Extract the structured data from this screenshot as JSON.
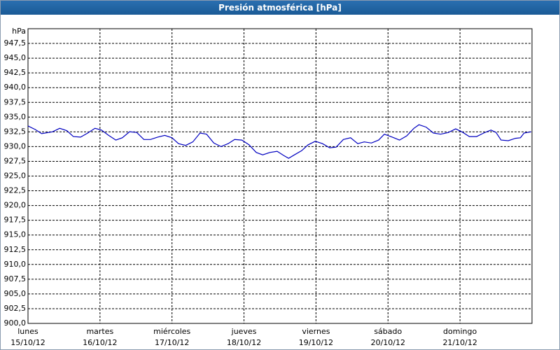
{
  "chart_data": {
    "type": "line",
    "title": "Presión atmosférica [hPa]",
    "y_label": "hPa",
    "xlim": [
      0,
      7
    ],
    "ylim": [
      900,
      950
    ],
    "xticks": [
      {
        "value": 0,
        "label": "lunes",
        "date": "15/10/12"
      },
      {
        "value": 1,
        "label": "martes",
        "date": "16/10/12"
      },
      {
        "value": 2,
        "label": "miércoles",
        "date": "17/10/12"
      },
      {
        "value": 3,
        "label": "jueves",
        "date": "18/10/12"
      },
      {
        "value": 4,
        "label": "viernes",
        "date": "19/10/12"
      },
      {
        "value": 5,
        "label": "sábado",
        "date": "20/10/12"
      },
      {
        "value": 6,
        "label": "domingo",
        "date": "21/10/12"
      }
    ],
    "yticks": [
      {
        "value": 900,
        "label": "900,0"
      },
      {
        "value": 902.5,
        "label": "902,5"
      },
      {
        "value": 905,
        "label": "905,0"
      },
      {
        "value": 907.5,
        "label": "907,5"
      },
      {
        "value": 910,
        "label": "910,0"
      },
      {
        "value": 912.5,
        "label": "912,5"
      },
      {
        "value": 915,
        "label": "915,0"
      },
      {
        "value": 917.5,
        "label": "917,5"
      },
      {
        "value": 920,
        "label": "920,0"
      },
      {
        "value": 922.5,
        "label": "922,5"
      },
      {
        "value": 925,
        "label": "925,0"
      },
      {
        "value": 927.5,
        "label": "927,5"
      },
      {
        "value": 930,
        "label": "930,0"
      },
      {
        "value": 932.5,
        "label": "932,5"
      },
      {
        "value": 935,
        "label": "935,0"
      },
      {
        "value": 937.5,
        "label": "937,5"
      },
      {
        "value": 940,
        "label": "940,0"
      },
      {
        "value": 942.5,
        "label": "942,5"
      },
      {
        "value": 945,
        "label": "945,0"
      },
      {
        "value": 947.5,
        "label": "947,5"
      }
    ],
    "grid": true,
    "series": [
      {
        "color": "#0000c0",
        "x": [
          0,
          0.1,
          0.19,
          0.34,
          0.44,
          0.54,
          0.63,
          0.73,
          0.83,
          0.93,
          1.02,
          1.12,
          1.22,
          1.31,
          1.41,
          1.51,
          1.61,
          1.7,
          1.8,
          1.9,
          2.0,
          2.09,
          2.19,
          2.29,
          2.39,
          2.48,
          2.58,
          2.68,
          2.78,
          2.87,
          2.97,
          3.07,
          3.17,
          3.26,
          3.36,
          3.46,
          3.55,
          3.62,
          3.7,
          3.8,
          3.89,
          3.99,
          4.09,
          4.19,
          4.28,
          4.38,
          4.48,
          4.58,
          4.67,
          4.77,
          4.87,
          4.95,
          5.06,
          5.16,
          5.26,
          5.36,
          5.43,
          5.53,
          5.63,
          5.73,
          5.84,
          5.94,
          6.04,
          6.13,
          6.23,
          6.33,
          6.43,
          6.5,
          6.57,
          6.67,
          6.77,
          6.84,
          6.89,
          6.99
        ],
        "values": [
          933.5,
          932.9,
          932.2,
          932.5,
          933.1,
          932.7,
          931.7,
          931.6,
          932.3,
          933.1,
          932.8,
          931.9,
          931.1,
          931.5,
          932.5,
          932.4,
          931.2,
          931.2,
          931.6,
          931.9,
          931.5,
          930.5,
          930.2,
          930.8,
          932.3,
          932.1,
          930.6,
          930.0,
          930.5,
          931.2,
          931.1,
          930.3,
          929.0,
          928.6,
          929.0,
          929.2,
          928.5,
          928.0,
          928.6,
          929.3,
          930.3,
          930.9,
          930.5,
          929.8,
          929.9,
          931.2,
          931.5,
          930.5,
          930.8,
          930.6,
          931.1,
          932.1,
          931.6,
          931.1,
          931.8,
          933.1,
          933.7,
          933.3,
          932.3,
          932.1,
          932.4,
          933.0,
          932.4,
          931.7,
          931.7,
          932.3,
          932.8,
          932.4,
          931.1,
          931.0,
          931.4,
          931.5,
          932.3,
          932.5
        ]
      }
    ]
  }
}
